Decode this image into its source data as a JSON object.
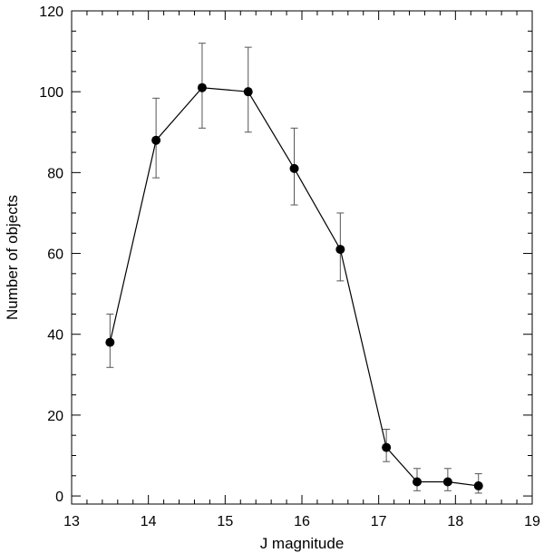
{
  "chart_data": {
    "type": "scatter",
    "title": "",
    "xlabel": "J magnitude",
    "ylabel": "Number of objects",
    "xlim": [
      13,
      19
    ],
    "ylim": [
      -2,
      120
    ],
    "grid": false,
    "x_ticks": [
      13,
      14,
      15,
      16,
      17,
      18,
      19
    ],
    "y_ticks": [
      0,
      20,
      40,
      60,
      80,
      100,
      120
    ],
    "series": [
      {
        "x": [
          13.5,
          14.1,
          14.7,
          15.3,
          15.9,
          16.5,
          17.1,
          17.5,
          17.9,
          18.3
        ],
        "y": [
          38,
          88,
          101,
          100,
          81,
          61,
          12,
          3.5,
          3.5,
          2.5
        ],
        "y_err_low": [
          31.8,
          78.7,
          91,
          90,
          72,
          53.2,
          8.5,
          1.3,
          1.3,
          0.7
        ],
        "y_err_high": [
          45,
          98.4,
          112,
          111,
          91,
          70,
          16.5,
          6.8,
          6.8,
          5.5
        ],
        "color": "#000000",
        "connected": true
      }
    ]
  }
}
